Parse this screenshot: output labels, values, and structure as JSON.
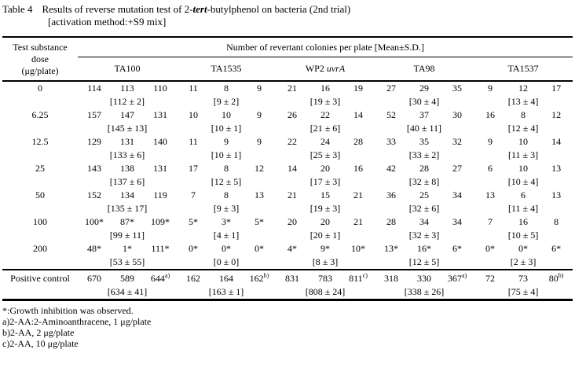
{
  "title": {
    "label": "Table 4",
    "text_pre": "Results of reverse mutation test of 2-",
    "text_italic": "tert",
    "text_post": "-butylphenol on bacteria (2nd trial)",
    "line2": "[activation method:+S9 mix]"
  },
  "table": {
    "dose_header": [
      "Test substance",
      "dose",
      "(μg/plate)"
    ],
    "span_header": "Number of revertant colonies per plate [Mean±S.D.]",
    "strains": [
      {
        "pre": "TA100",
        "italic": ""
      },
      {
        "pre": "TA1535",
        "italic": ""
      },
      {
        "pre": "WP2 ",
        "italic": "uvrA"
      },
      {
        "pre": "TA98",
        "italic": ""
      },
      {
        "pre": "TA1537",
        "italic": ""
      }
    ],
    "rows": [
      {
        "dose": "0",
        "groups": [
          {
            "values": [
              "114",
              "113",
              "110"
            ],
            "mean": "[112 ± 2]"
          },
          {
            "values": [
              "11",
              "8",
              "9"
            ],
            "mean": "[9 ± 2]"
          },
          {
            "values": [
              "21",
              "16",
              "19"
            ],
            "mean": "[19 ± 3]"
          },
          {
            "values": [
              "27",
              "29",
              "35"
            ],
            "mean": "[30 ± 4]"
          },
          {
            "values": [
              "9",
              "12",
              "17"
            ],
            "mean": "[13 ± 4]"
          }
        ]
      },
      {
        "dose": "6.25",
        "groups": [
          {
            "values": [
              "157",
              "147",
              "131"
            ],
            "mean": "[145 ± 13]"
          },
          {
            "values": [
              "10",
              "10",
              "9"
            ],
            "mean": "[10 ± 1]"
          },
          {
            "values": [
              "26",
              "22",
              "14"
            ],
            "mean": "[21 ± 6]"
          },
          {
            "values": [
              "52",
              "37",
              "30"
            ],
            "mean": "[40 ± 11]"
          },
          {
            "values": [
              "16",
              "8",
              "12"
            ],
            "mean": "[12 ± 4]"
          }
        ]
      },
      {
        "dose": "12.5",
        "groups": [
          {
            "values": [
              "129",
              "131",
              "140"
            ],
            "mean": "[133 ± 6]"
          },
          {
            "values": [
              "11",
              "9",
              "9"
            ],
            "mean": "[10 ± 1]"
          },
          {
            "values": [
              "22",
              "24",
              "28"
            ],
            "mean": "[25 ± 3]"
          },
          {
            "values": [
              "33",
              "35",
              "32"
            ],
            "mean": "[33 ± 2]"
          },
          {
            "values": [
              "9",
              "10",
              "14"
            ],
            "mean": "[11 ± 3]"
          }
        ]
      },
      {
        "dose": "25",
        "groups": [
          {
            "values": [
              "143",
              "138",
              "131"
            ],
            "mean": "[137 ± 6]"
          },
          {
            "values": [
              "17",
              "8",
              "12"
            ],
            "mean": "[12 ± 5]"
          },
          {
            "values": [
              "14",
              "20",
              "16"
            ],
            "mean": "[17 ± 3]"
          },
          {
            "values": [
              "42",
              "28",
              "27"
            ],
            "mean": "[32 ± 8]"
          },
          {
            "values": [
              "6",
              "10",
              "13"
            ],
            "mean": "[10 ± 4]"
          }
        ]
      },
      {
        "dose": "50",
        "groups": [
          {
            "values": [
              "152",
              "134",
              "119"
            ],
            "mean": "[135 ± 17]"
          },
          {
            "values": [
              "7",
              "8",
              "13"
            ],
            "mean": "[9 ± 3]"
          },
          {
            "values": [
              "21",
              "15",
              "21"
            ],
            "mean": "[19 ± 3]"
          },
          {
            "values": [
              "36",
              "25",
              "34"
            ],
            "mean": "[32 ± 6]"
          },
          {
            "values": [
              "13",
              "6",
              "13"
            ],
            "mean": "[11 ± 4]"
          }
        ]
      },
      {
        "dose": "100",
        "groups": [
          {
            "values": [
              "100*",
              "87*",
              "109*"
            ],
            "mean": "[99 ± 11]"
          },
          {
            "values": [
              "5*",
              "3*",
              "5*"
            ],
            "mean": "[4 ± 1]"
          },
          {
            "values": [
              "20",
              "20",
              "21"
            ],
            "mean": "[20 ± 1]"
          },
          {
            "values": [
              "28",
              "34",
              "34"
            ],
            "mean": "[32 ± 3]"
          },
          {
            "values": [
              "7",
              "16",
              "8"
            ],
            "mean": "[10 ± 5]"
          }
        ]
      },
      {
        "dose": "200",
        "groups": [
          {
            "values": [
              "48*",
              "1*",
              "111*"
            ],
            "mean": "[53 ± 55]"
          },
          {
            "values": [
              "0*",
              "0*",
              "0*"
            ],
            "mean": "[0 ± 0]"
          },
          {
            "values": [
              "4*",
              "9*",
              "10*"
            ],
            "mean": "[8 ± 3]"
          },
          {
            "values": [
              "13*",
              "16*",
              "6*"
            ],
            "mean": "[12 ± 5]"
          },
          {
            "values": [
              "0*",
              "0*",
              "6*"
            ],
            "mean": "[2 ± 3]"
          }
        ]
      },
      {
        "dose": "Positive control",
        "groups": [
          {
            "values": [
              "670",
              "589",
              "644^a)"
            ],
            "mean": "[634 ± 41]"
          },
          {
            "values": [
              "162",
              "164",
              "162^b)"
            ],
            "mean": "[163 ± 1]"
          },
          {
            "values": [
              "831",
              "783",
              "811^c)"
            ],
            "mean": "[808 ± 24]"
          },
          {
            "values": [
              "318",
              "330",
              "367^a)"
            ],
            "mean": "[338 ± 26]"
          },
          {
            "values": [
              "72",
              "73",
              "80^b)"
            ],
            "mean": "[75 ± 4]"
          }
        ]
      }
    ]
  },
  "footnotes": [
    "*:Growth inhibition was observed.",
    "a)2-AA:2-Aminoanthracene, 1 μg/plate",
    "b)2-AA, 2 μg/plate",
    "c)2-AA, 10 μg/plate"
  ]
}
